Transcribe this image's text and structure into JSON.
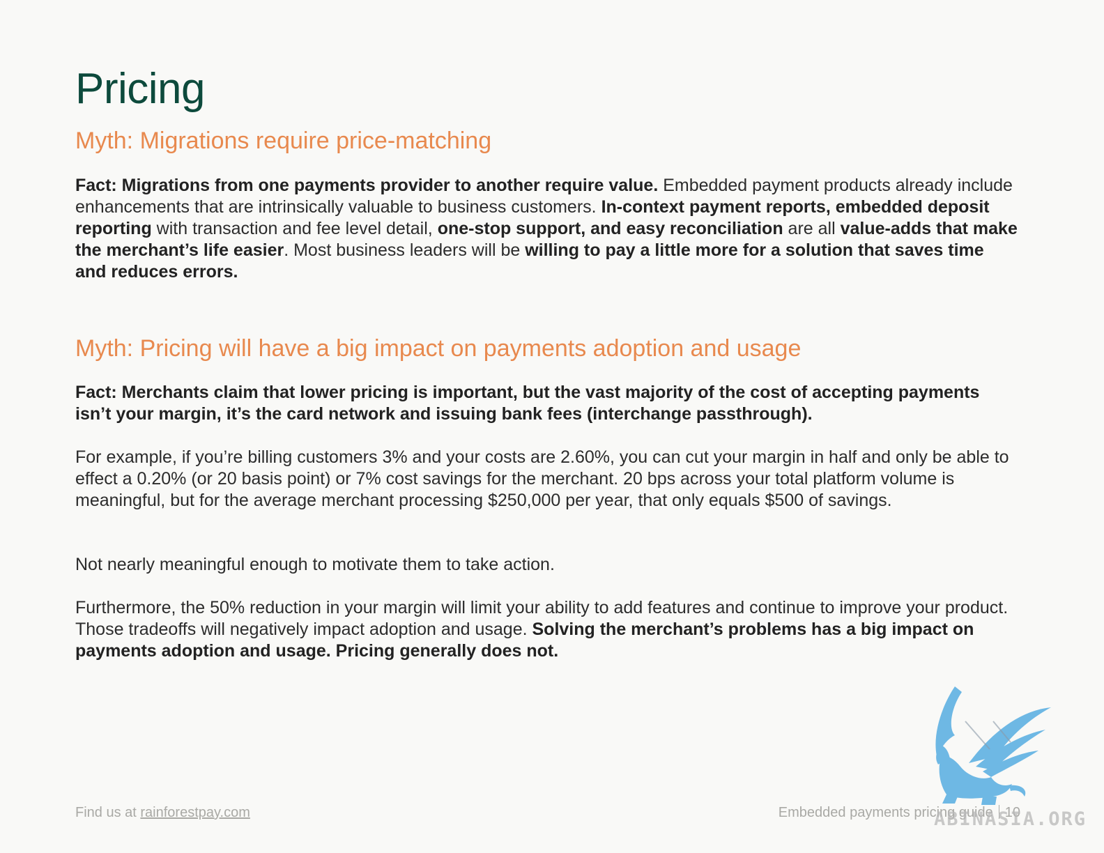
{
  "page": {
    "title": "Pricing"
  },
  "myth1": {
    "heading": "Myth: Migrations require price-matching",
    "fact": [
      {
        "text": "Fact: Migrations from one payments provider to another require value.",
        "bold": true
      },
      {
        "text": " Embedded payment products already include enhancements that are intrinsically valuable to business customers. ",
        "bold": false
      },
      {
        "text": "In-context payment reports, embedded deposit reporting",
        "bold": true
      },
      {
        "text": " with transaction and fee level detail, ",
        "bold": false
      },
      {
        "text": "one-stop support, and easy reconciliation",
        "bold": true
      },
      {
        "text": " are all ",
        "bold": false
      },
      {
        "text": "value-adds that make the merchant’s life easier",
        "bold": true
      },
      {
        "text": ". Most business leaders will be ",
        "bold": false
      },
      {
        "text": "willing to pay a little more for a solution that saves time and reduces errors.",
        "bold": true
      }
    ]
  },
  "myth2": {
    "heading": "Myth: Pricing will have a big impact on payments adoption and usage",
    "fact": [
      {
        "text": "Fact: Merchants claim that lower pricing is important, but the vast majority of the cost of accepting payments isn’t your margin, it’s the card network and issuing bank fees (interchange passthrough).",
        "bold": true
      }
    ],
    "example": [
      {
        "text": "For example, if you’re billing customers 3% and your costs are 2.60%, you can cut your margin in half and only be able to effect a 0.20% (or 20 basis point) or 7% cost savings for the merchant. 20 bps across your total platform volume is meaningful, but for the average merchant processing $250,000 per year, that only equals $500 of savings.",
        "bold": false
      }
    ],
    "not_meaningful": [
      {
        "text": "Not nearly meaningful enough to motivate them to take action.",
        "bold": false
      }
    ],
    "furthermore": [
      {
        "text": "Furthermore, the 50% reduction in your margin will limit your ability to add features and continue to improve your product. Those tradeoffs will negatively impact adoption and usage. ",
        "bold": false
      },
      {
        "text": "Solving the merchant’s problems has a big impact on payments adoption and usage. Pricing generally does not.",
        "bold": true
      }
    ]
  },
  "footer": {
    "find_us_prefix": "Find us at ",
    "link_text": "rainforestpay.com",
    "guide_title": "Embedded payments pricing guide",
    "page_number": "10"
  },
  "watermark": {
    "text": "ABINASIA.ORG"
  },
  "colors": {
    "title": "#0d4a3c",
    "myth_heading": "#e8894e",
    "body_text": "#2c2c2c",
    "footer_text": "#a9a9a5",
    "watermark_blue": "#5fb1e3"
  }
}
